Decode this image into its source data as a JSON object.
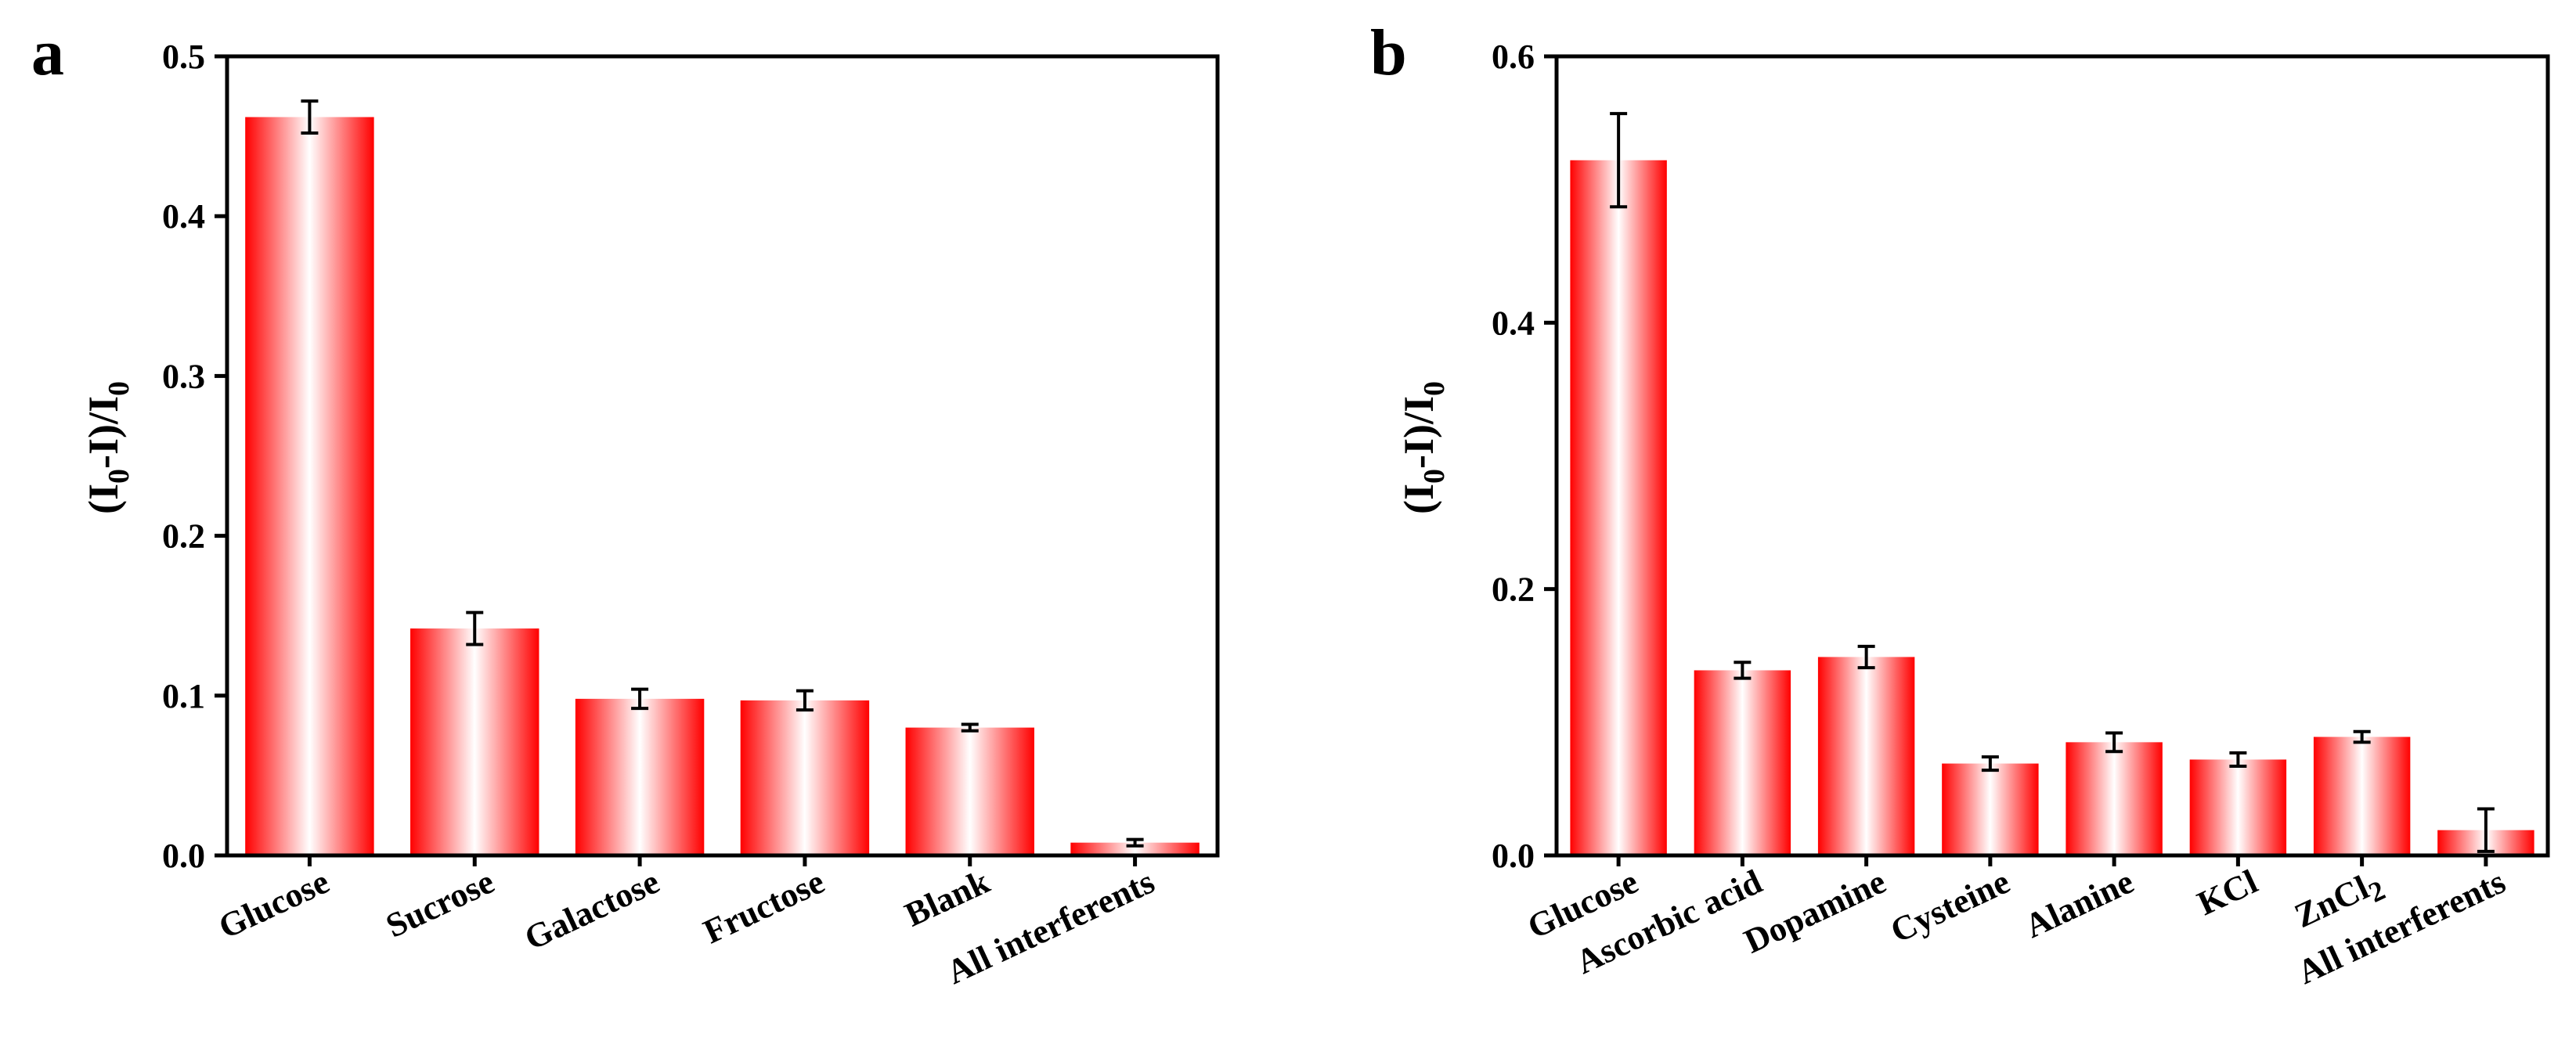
{
  "colors": {
    "bar_edge": "#ff0000",
    "bar_center": "#ffffff",
    "axis": "#000000"
  },
  "chart_data": [
    {
      "type": "bar",
      "panel": "a",
      "ylabel": "(I0-I)/I0",
      "ylim": [
        0,
        0.5
      ],
      "yticks": [
        0.0,
        0.1,
        0.2,
        0.3,
        0.4,
        0.5
      ],
      "ytick_labels": [
        "0.0",
        "0.1",
        "0.2",
        "0.3",
        "0.4",
        "0.5"
      ],
      "categories": [
        "Glucose",
        "Sucrose",
        "Galactose",
        "Fructose",
        "Blank",
        "All  interferents"
      ],
      "values": [
        0.462,
        0.142,
        0.098,
        0.097,
        0.08,
        0.008
      ],
      "errors": [
        0.01,
        0.01,
        0.006,
        0.006,
        0.002,
        0.002
      ]
    },
    {
      "type": "bar",
      "panel": "b",
      "ylabel": "(I0-I)/I0",
      "ylim": [
        0,
        0.6
      ],
      "yticks": [
        0.0,
        0.2,
        0.4,
        0.6
      ],
      "ytick_labels": [
        "0.0",
        "0.2",
        "0.4",
        "0.6"
      ],
      "categories": [
        "Glucose",
        "Ascorbic acid",
        "Dopamine",
        "Cysteine",
        "Alanine",
        "KCl",
        "ZnCl2",
        "All interferents"
      ],
      "values": [
        0.522,
        0.139,
        0.149,
        0.069,
        0.085,
        0.072,
        0.089,
        0.019
      ],
      "errors": [
        0.035,
        0.006,
        0.008,
        0.005,
        0.007,
        0.005,
        0.004,
        0.016
      ]
    }
  ]
}
